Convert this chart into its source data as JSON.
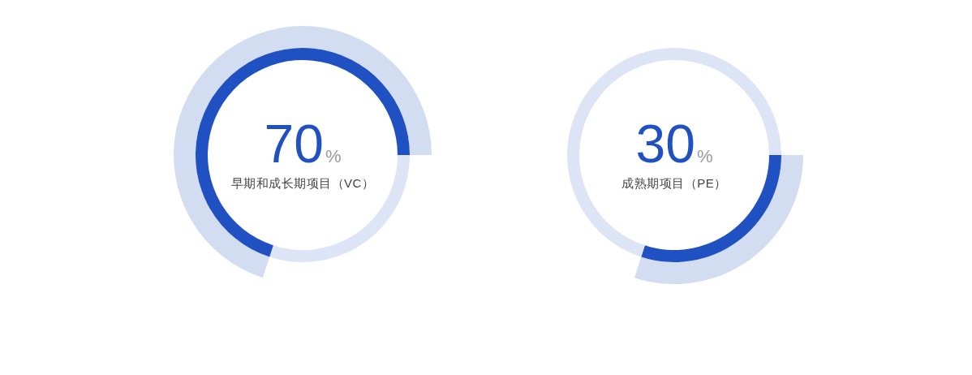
{
  "chart_data": [
    {
      "type": "donut",
      "categories": [
        null,
        "早期和成长期项目（VC）"
      ],
      "values": [
        30,
        70
      ],
      "colors": [
        "#dde4f5",
        "#1f51c3"
      ],
      "value_labels": [
        null,
        "70%"
      ]
    },
    {
      "type": "donut",
      "categories": [
        "成熟期项目（PE）",
        null
      ],
      "values": [
        30,
        70
      ],
      "colors": [
        "#1f51c3",
        "#dde4f5"
      ],
      "value_labels": [
        "30%",
        null
      ]
    }
  ]
}
